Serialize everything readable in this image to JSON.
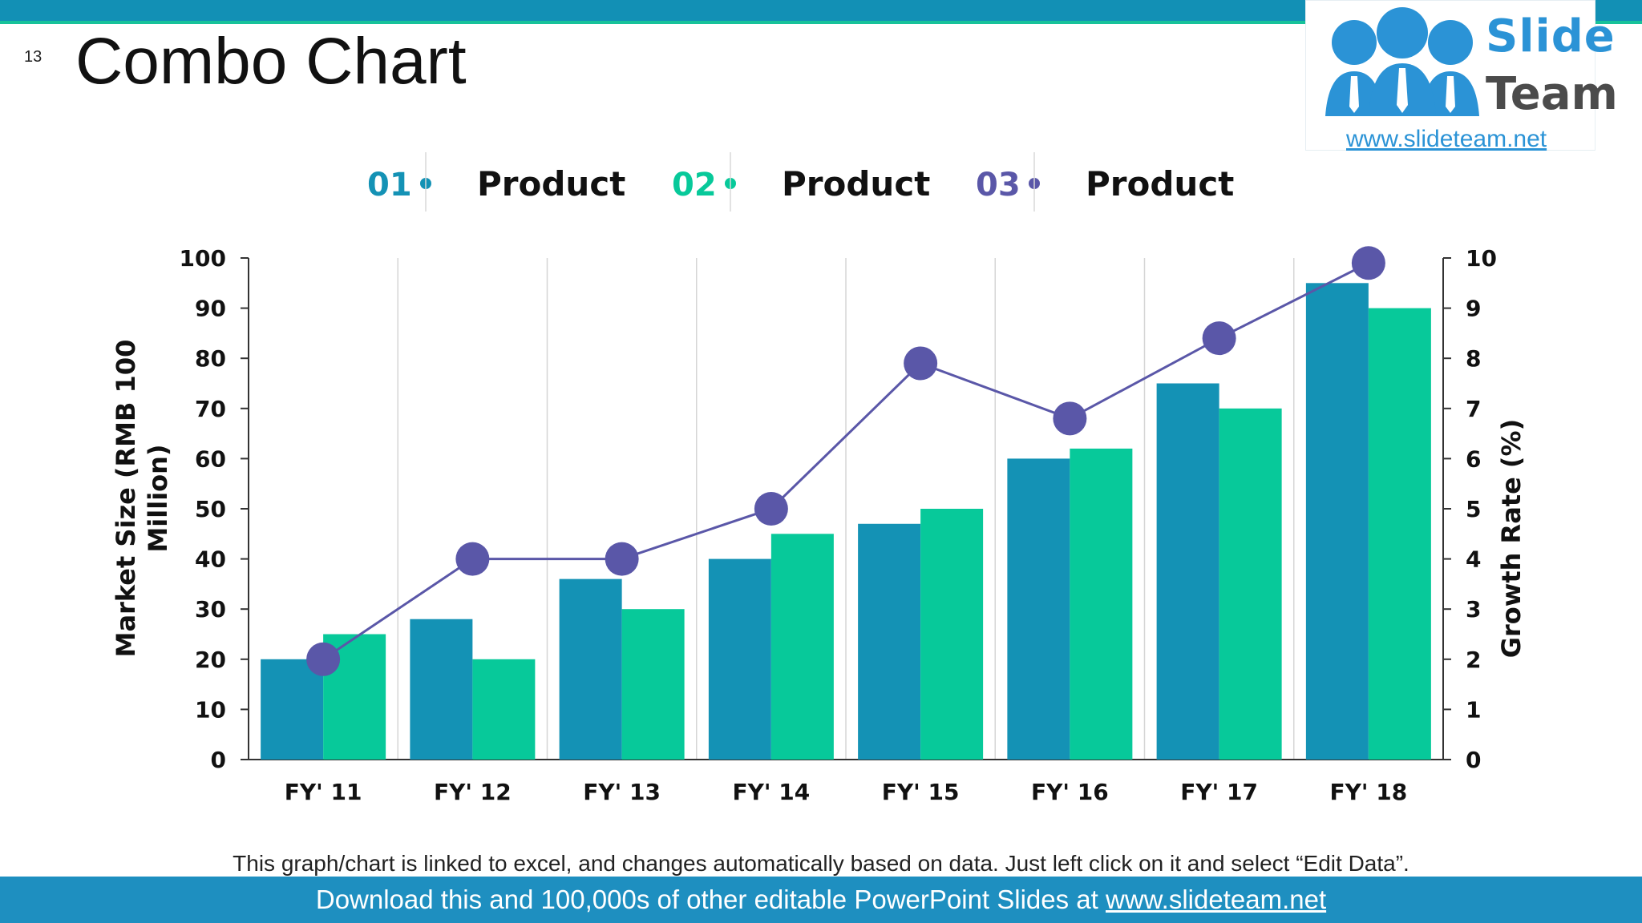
{
  "slide": {
    "number": "13",
    "title": "Combo Chart",
    "footnote": "This graph/chart is linked to excel, and changes automatically based on data. Just left click on it and select “Edit Data”.",
    "footer_prefix": "Download this and 100,000s of other editable PowerPoint Slides at ",
    "footer_link": "www.slideteam.net"
  },
  "logo": {
    "line1": "Slide",
    "line2": "Team",
    "url": "www.slideteam.net",
    "icon": "people-group-icon"
  },
  "colors": {
    "series1": "#1492b5",
    "series2": "#07c99a",
    "line": "#5a57a8",
    "top_bar": "#1290b5",
    "footer": "#1e8fc0"
  },
  "chart_data": {
    "type": "bar",
    "combo": "bar+line",
    "categories": [
      "FY' 11",
      "FY' 12",
      "FY' 13",
      "FY' 14",
      "FY' 15",
      "FY' 16",
      "FY' 17",
      "FY' 18"
    ],
    "series": [
      {
        "name": "Product",
        "legend_number": "01",
        "type": "bar",
        "axis": "left",
        "values": [
          20,
          28,
          36,
          40,
          47,
          60,
          75,
          95
        ]
      },
      {
        "name": "Product",
        "legend_number": "02",
        "type": "bar",
        "axis": "left",
        "values": [
          25,
          20,
          30,
          45,
          50,
          62,
          70,
          90
        ]
      },
      {
        "name": "Product",
        "legend_number": "03",
        "type": "line",
        "axis": "right",
        "values": [
          2,
          4,
          4,
          5,
          7.9,
          6.8,
          8.4,
          9.9
        ]
      }
    ],
    "ylabel": "Market Size (RMB 100 Million)",
    "ylabel_lines": [
      "Market Size (RMB 100",
      "Million)"
    ],
    "y2label": "Growth Rate (%)",
    "ylim": [
      0,
      100
    ],
    "y2lim": [
      0,
      10
    ],
    "yticks": [
      0,
      10,
      20,
      30,
      40,
      50,
      60,
      70,
      80,
      90,
      100
    ],
    "y2ticks": [
      0,
      1,
      2,
      3,
      4,
      5,
      6,
      7,
      8,
      9,
      10
    ],
    "grid": "vertical",
    "legend": "top-center"
  }
}
